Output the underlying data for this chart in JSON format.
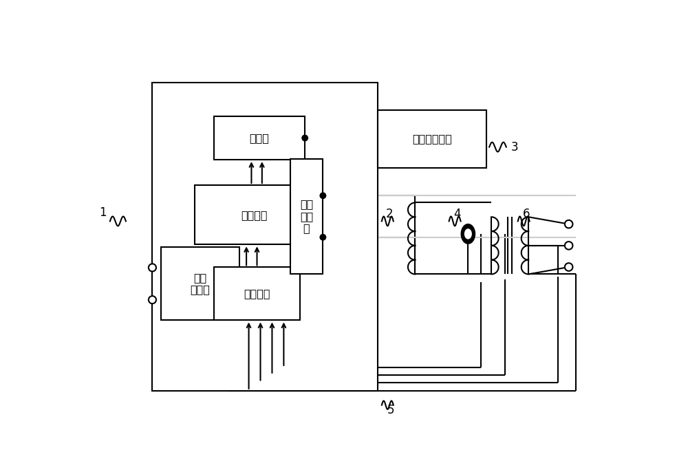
{
  "bg_color": "#ffffff",
  "lc": "#000000",
  "lw": 1.5,
  "fig_w": 10.0,
  "fig_h": 6.83,
  "dpi": 100,
  "labels": {
    "tongxun": "通讯端",
    "kongzhi": "控制芯片",
    "hmi": "人机交互模块",
    "ps_in": "电源\n输入端",
    "data_if": "数据接口",
    "ps_out": "电源\n输出\n端",
    "n1": "1",
    "n2": "2",
    "n3": "3",
    "n4": "4",
    "n5": "5",
    "n6": "6"
  },
  "font_size": 11.5,
  "label_font_size": 12
}
